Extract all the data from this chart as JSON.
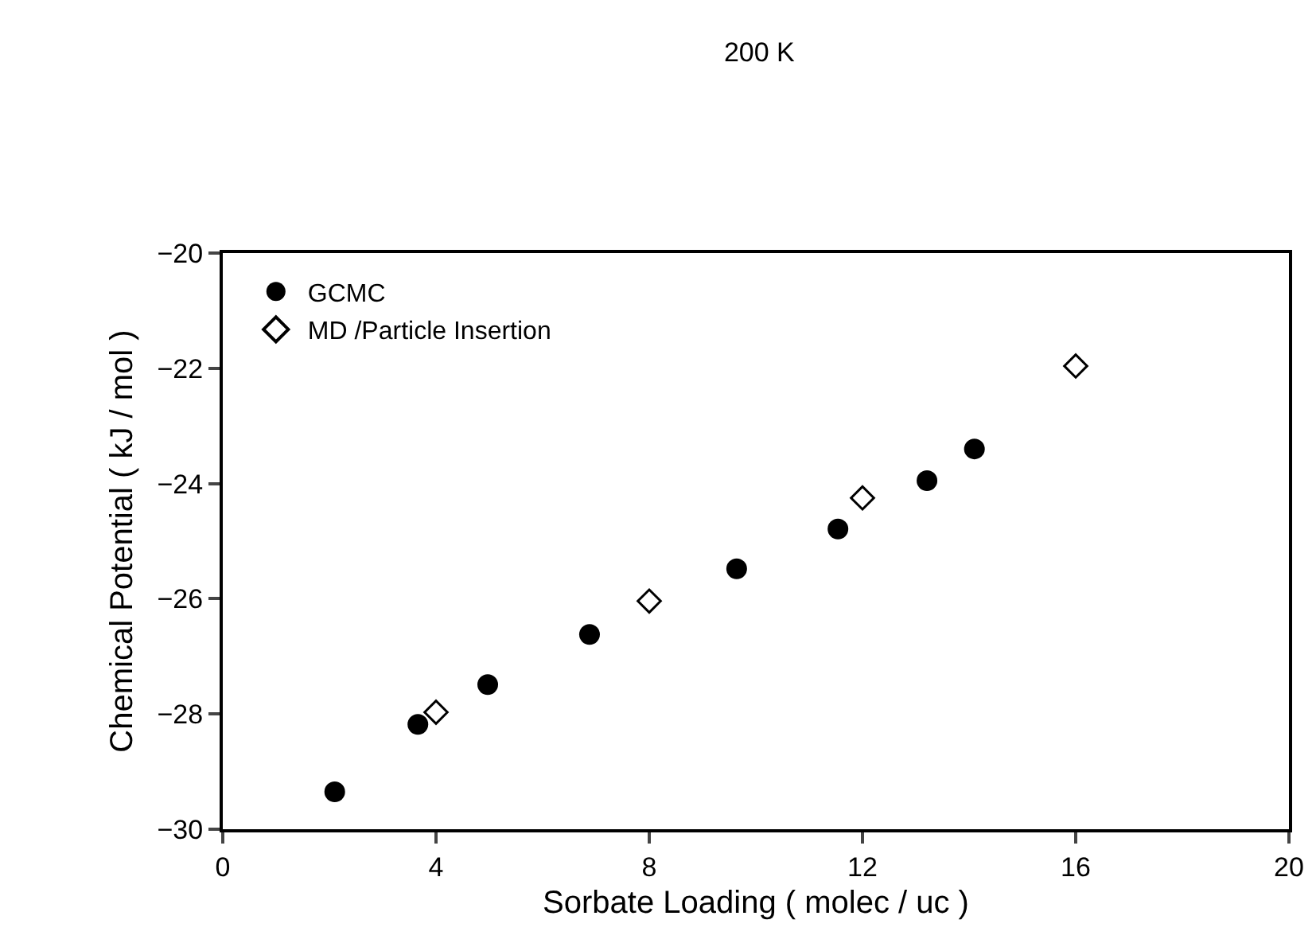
{
  "chart_data": {
    "type": "scatter",
    "title": "200 K",
    "xlabel": "Sorbate Loading ( molec / uc )",
    "ylabel": "Chemical Potential ( kJ / mol )",
    "xlim": [
      0,
      20
    ],
    "xticks": [
      0,
      4,
      8,
      12,
      16,
      20
    ],
    "ylim": [
      -30,
      -20
    ],
    "yticks": [
      -30,
      -28,
      -26,
      -24,
      -22,
      -20
    ],
    "grid": false,
    "legend": "top left",
    "series": [
      {
        "name": "GCMC",
        "color": "#000000",
        "marker": "circle",
        "x": [
          2.1,
          3.66,
          4.97,
          6.88,
          9.64,
          11.54,
          13.21,
          14.1
        ],
        "values": [
          -29.35,
          -28.18,
          -27.49,
          -26.62,
          -25.48,
          -24.79,
          -23.95,
          -23.4
        ]
      },
      {
        "name": "MD /Particle Insertion",
        "color": "#000000",
        "marker": "diamond",
        "x": [
          4,
          8,
          12,
          16
        ],
        "values": [
          -27.97,
          -26.04,
          -24.25,
          -21.96
        ]
      }
    ]
  }
}
